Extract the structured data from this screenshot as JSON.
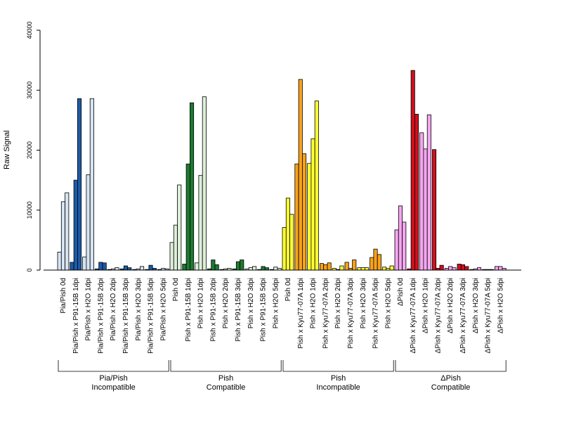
{
  "chart_data": {
    "type": "bar",
    "ylabel": "Raw Signal",
    "ylim": [
      0,
      40000
    ],
    "yticks": [
      "0",
      "10000",
      "20000",
      "30000",
      "40000"
    ],
    "groups": [
      {
        "name": "Pia/Pish\nIncompatible",
        "name_lines": [
          "Pia/Pish",
          "Incompatible"
        ],
        "color_light": "#d6e4f3",
        "color_dark": "#1c5ba6",
        "categories": [
          {
            "label": "Pia/Pish 0d",
            "shade": "light",
            "values": [
              3000,
              11400,
              12900
            ]
          },
          {
            "label": "Pia/Pish x P91-15B 1dpi",
            "shade": "dark",
            "values": [
              1300,
              15000,
              28600
            ]
          },
          {
            "label": "Pia/Pish x H2O 1dpi",
            "shade": "light",
            "values": [
              2200,
              15900,
              28600
            ]
          },
          {
            "label": "Pia/Pish x P91-15B 2dpi",
            "shade": "dark",
            "values": [
              200,
              1300,
              1200
            ]
          },
          {
            "label": "Pia/Pish x H2O 2dpi",
            "shade": "light",
            "values": [
              100,
              200,
              400
            ]
          },
          {
            "label": "Pia/Pish x P91-15B 3dpi",
            "shade": "dark",
            "values": [
              200,
              700,
              400
            ]
          },
          {
            "label": "Pia/Pish x H2O 3dpi",
            "shade": "light",
            "values": [
              100,
              200,
              600
            ]
          },
          {
            "label": "Pia/Pish x P91-15B 5dpi",
            "shade": "dark",
            "values": [
              100,
              800,
              300
            ]
          },
          {
            "label": "Pia/Pish x H2O 5dpi",
            "shade": "light",
            "values": [
              100,
              300,
              200
            ]
          }
        ]
      },
      {
        "name": "Pish\nCompatible",
        "name_lines": [
          "Pish",
          "Compatible"
        ],
        "color_light": "#ddefd9",
        "color_dark": "#1e7a30",
        "categories": [
          {
            "label": "Pish 0d",
            "shade": "light",
            "values": [
              4600,
              7500,
              14200
            ]
          },
          {
            "label": "Pish x P91-15B 1dpi",
            "shade": "dark",
            "values": [
              1000,
              17700,
              27900
            ]
          },
          {
            "label": "Pish x H2O 1dpi",
            "shade": "light",
            "values": [
              1200,
              15800,
              28900
            ]
          },
          {
            "label": "Pish x P91-15B 2dpi",
            "shade": "dark",
            "values": [
              200,
              1700,
              900
            ]
          },
          {
            "label": "Pish x H2O 2dpi",
            "shade": "light",
            "values": [
              100,
              200,
              300
            ]
          },
          {
            "label": "Pish x P91-15B 3dpi",
            "shade": "dark",
            "values": [
              200,
              1400,
              1700
            ]
          },
          {
            "label": "Pish x H2O 3dpi",
            "shade": "light",
            "values": [
              200,
              400,
              600
            ]
          },
          {
            "label": "Pish x P91-15B 5dpi",
            "shade": "dark",
            "values": [
              100,
              600,
              400
            ]
          },
          {
            "label": "Pish x H2O 5dpi",
            "shade": "light",
            "values": [
              100,
              500,
              300
            ]
          }
        ]
      },
      {
        "name": "Pish\nIncompatible",
        "name_lines": [
          "Pish",
          "Incompatible"
        ],
        "color_light": "#ffff33",
        "color_dark": "#f7a21b",
        "categories": [
          {
            "label": "Pish 0d",
            "shade": "light",
            "values": [
              7100,
              12000,
              9300
            ]
          },
          {
            "label": "Pish x Kyu77-07A 1dpi",
            "shade": "dark",
            "values": [
              17700,
              31800,
              19400
            ]
          },
          {
            "label": "Pish x H2O 1dpi",
            "shade": "light",
            "values": [
              17800,
              21900,
              28200
            ]
          },
          {
            "label": "Pish x Kyu77-07A 2dpi",
            "shade": "dark",
            "values": [
              1100,
              900,
              1200
            ]
          },
          {
            "label": "Pish x H2O 2dpi",
            "shade": "light",
            "values": [
              300,
              100,
              700
            ]
          },
          {
            "label": "Pish x Kyu77-07A 3dpi",
            "shade": "dark",
            "values": [
              1300,
              300,
              1700
            ]
          },
          {
            "label": "Pish x H2O 3dpi",
            "shade": "light",
            "values": [
              400,
              400,
              400
            ]
          },
          {
            "label": "Pish x Kyu77-07A 5dpi",
            "shade": "dark",
            "values": [
              2100,
              3500,
              2600
            ]
          },
          {
            "label": "Pish x H2O 5dpi",
            "shade": "light",
            "values": [
              500,
              300,
              700
            ]
          }
        ]
      },
      {
        "name": "ΔPish\nCompatible",
        "name_lines": [
          "ΔPish",
          "Compatible"
        ],
        "color_light": "#f5a6f0",
        "color_dark": "#d0101e",
        "categories": [
          {
            "label": "ΔPish 0d",
            "shade": "light",
            "values": [
              6700,
              10700,
              8000
            ]
          },
          {
            "label": "ΔPish x Kyu77-07A 1dpi",
            "shade": "dark",
            "values": [
              200,
              33300,
              26000
            ]
          },
          {
            "label": "ΔPish x H2O 1dpi",
            "shade": "light",
            "values": [
              22900,
              20200,
              25900
            ]
          },
          {
            "label": "ΔPish x Kyu77-07A 2dpi",
            "shade": "dark",
            "values": [
              20100,
              300,
              800
            ]
          },
          {
            "label": "ΔPish x H2O 2dpi",
            "shade": "light",
            "values": [
              300,
              600,
              400
            ]
          },
          {
            "label": "ΔPish x Kyu77-07A 3dpi",
            "shade": "dark",
            "values": [
              1000,
              900,
              600
            ]
          },
          {
            "label": "ΔPish x H2O 3dpi",
            "shade": "light",
            "values": [
              100,
              200,
              400
            ]
          },
          {
            "label": "ΔPish x Kyu77-07A 5dpi",
            "shade": "dark",
            "values": [
              100,
              100,
              100
            ]
          },
          {
            "label": "ΔPish x H2O 5dpi",
            "shade": "light",
            "values": [
              600,
              600,
              300
            ]
          }
        ]
      }
    ]
  }
}
